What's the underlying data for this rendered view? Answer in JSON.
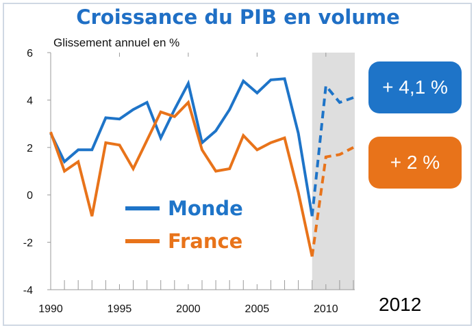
{
  "colors": {
    "monde": "#1e74c8",
    "france": "#e8731a",
    "forecast_band": "#dedede",
    "axis": "#999999"
  },
  "chart_data": {
    "type": "line",
    "title": "Croissance du PIB en volume",
    "subtitle": "Glissement annuel en %",
    "x": [
      1990,
      1991,
      1992,
      1993,
      1994,
      1995,
      1996,
      1997,
      1998,
      1999,
      2000,
      2001,
      2002,
      2003,
      2004,
      2005,
      2006,
      2007,
      2008,
      2009,
      2010,
      2011,
      2012
    ],
    "xticks": [
      1990,
      1995,
      2000,
      2005,
      2010
    ],
    "xlim": [
      1990,
      2012.1
    ],
    "ylim": [
      -4,
      6
    ],
    "yticks": [
      -4,
      -2,
      0,
      2,
      4,
      6
    ],
    "forecast_start": 2009,
    "forecast_end": 2012.1,
    "final_year_label": "2012",
    "series": [
      {
        "name": "Monde",
        "color": "#1e74c8",
        "values": [
          2.6,
          1.4,
          1.9,
          1.9,
          3.25,
          3.2,
          3.6,
          3.9,
          2.4,
          3.6,
          4.7,
          2.2,
          2.7,
          3.6,
          4.8,
          4.3,
          4.85,
          4.9,
          2.6,
          -0.9,
          4.6,
          3.9,
          4.1
        ]
      },
      {
        "name": "France",
        "color": "#e8731a",
        "values": [
          2.65,
          1.0,
          1.4,
          -0.9,
          2.2,
          2.1,
          1.1,
          2.3,
          3.5,
          3.3,
          3.9,
          1.9,
          1.0,
          1.1,
          2.5,
          1.9,
          2.2,
          2.4,
          0.1,
          -2.6,
          1.6,
          1.7,
          2.0
        ]
      }
    ],
    "annotations": [
      {
        "series": "Monde",
        "text": "+ 4,1 %"
      },
      {
        "series": "France",
        "text": "+ 2 %"
      }
    ],
    "grid": false,
    "legend_position": "inside-bottom-center"
  }
}
